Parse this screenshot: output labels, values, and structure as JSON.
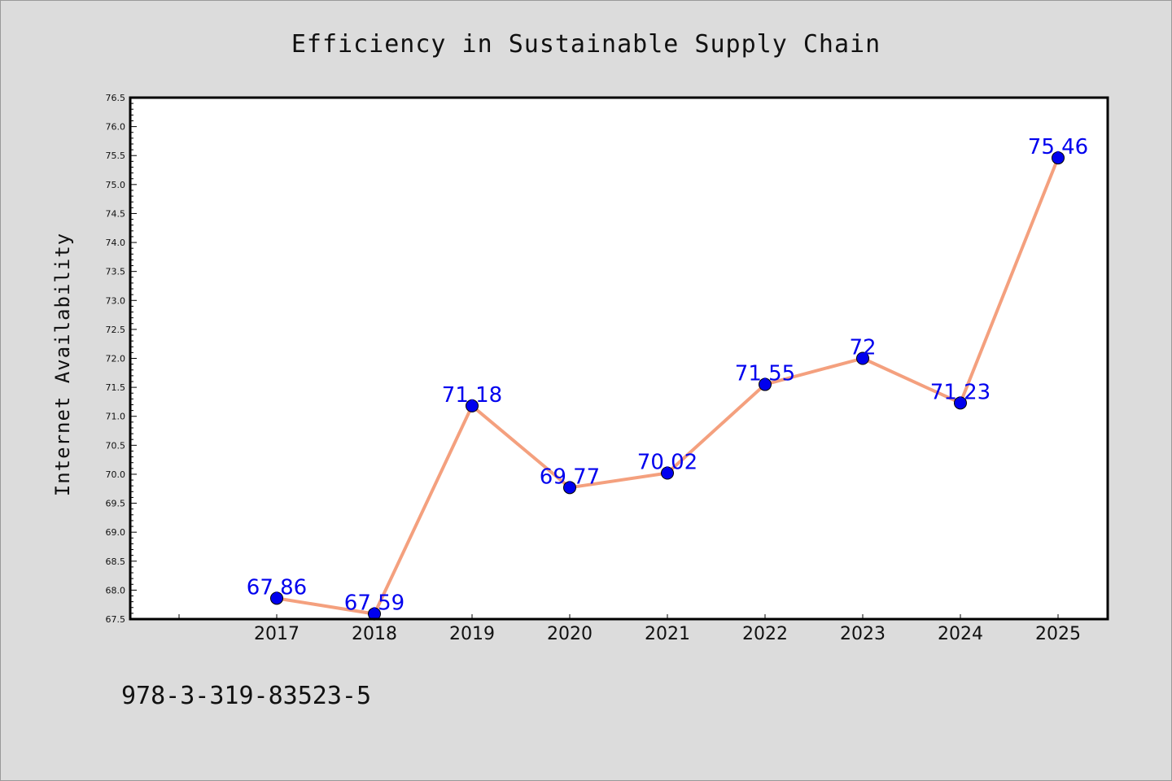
{
  "chart_data": {
    "type": "line",
    "title": "Efficiency in Sustainable Supply Chain",
    "xlabel": "",
    "ylabel": "Internet Availability",
    "categories": [
      "2017",
      "2018",
      "2019",
      "2020",
      "2021",
      "2022",
      "2023",
      "2024",
      "2025"
    ],
    "series": [
      {
        "values": [
          67.86,
          67.59,
          71.18,
          69.77,
          70.02,
          71.55,
          72,
          71.23,
          75.46
        ],
        "value_labels": [
          "67.86",
          "67.59",
          "71.18",
          "69.77",
          "70.02",
          "71.55",
          "72",
          "71.23",
          "75.46"
        ]
      }
    ],
    "ylim": [
      67.5,
      76.5
    ],
    "yticks": [
      "67.5",
      "68.0",
      "68.5",
      "69.0",
      "69.5",
      "70.0",
      "70.5",
      "71.0",
      "71.5",
      "72.0",
      "72.5",
      "73.0",
      "73.5",
      "74.0",
      "74.5",
      "75.0",
      "75.5",
      "76.0",
      "76.5"
    ],
    "grid": false,
    "colors": {
      "line": "#f4a07e",
      "marker": "#0000ee",
      "marker_edge": "#000000",
      "data_label": "#0000ee",
      "background": "#dcdcdc",
      "plot_background": "#ffffff"
    }
  },
  "footer": {
    "isbn": "978-3-319-83523-5"
  }
}
